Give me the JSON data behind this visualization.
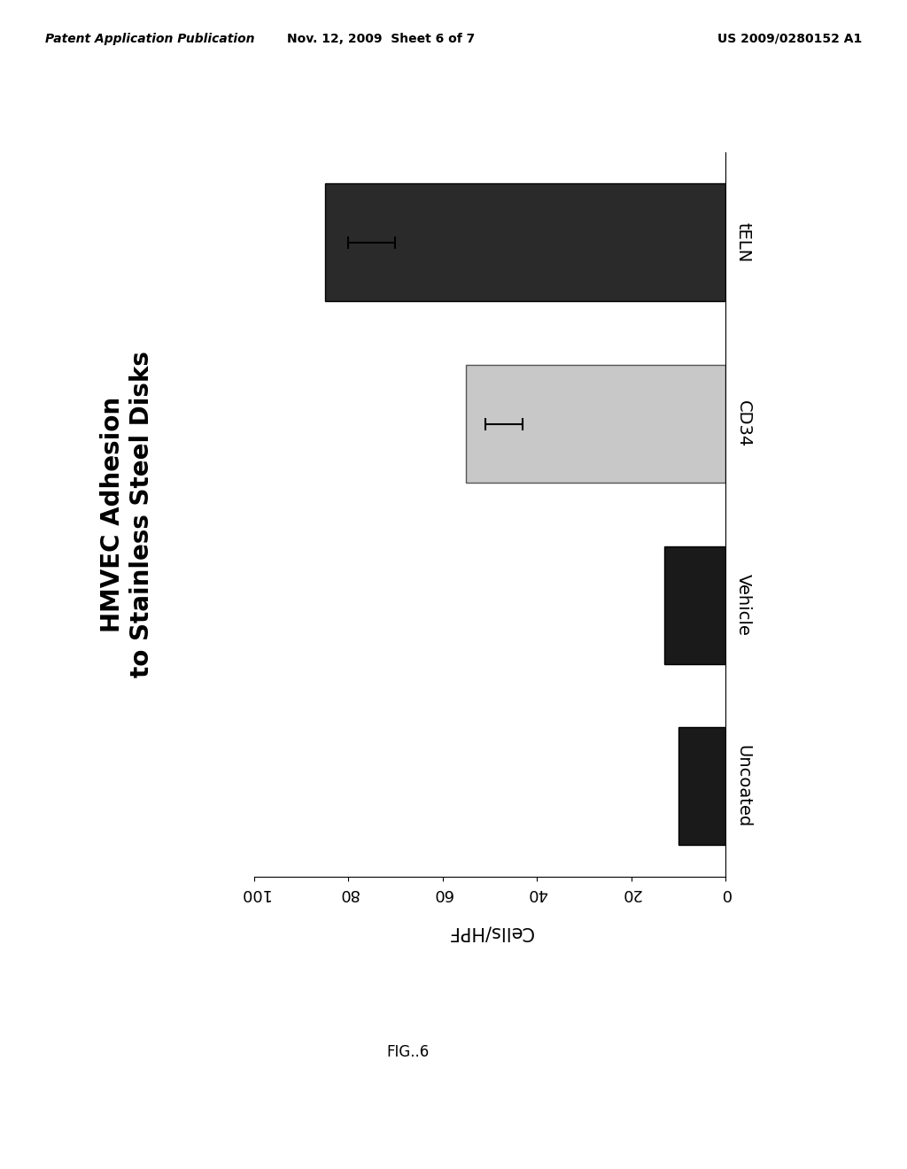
{
  "categories": [
    "Uncoated",
    "Vehicle",
    "CD34",
    "tELN"
  ],
  "values": [
    10,
    13,
    55,
    85
  ],
  "errors": [
    0,
    0,
    8,
    10
  ],
  "has_error": [
    false,
    false,
    true,
    true
  ],
  "bar_colors": [
    "#1a1a1a",
    "#1a1a1a",
    "#c8c8c8",
    "#2a2a2a"
  ],
  "bar_edge_colors": [
    "#000000",
    "#000000",
    "#555555",
    "#000000"
  ],
  "xlabel": "Cells/HPF",
  "xlim": [
    0,
    100
  ],
  "xticks": [
    0,
    20,
    40,
    60,
    80,
    100
  ],
  "title_line1": "HMVEC Adhesion",
  "title_line2": "to Stainless Steel Disks",
  "title_fontsize": 20,
  "tick_fontsize": 13,
  "label_fontsize": 15,
  "fig_caption": "FIG..6",
  "header_left": "Patent Application Publication",
  "header_center": "Nov. 12, 2009  Sheet 6 of 7",
  "header_right": "US 2009/0280152 A1",
  "background_color": "#ffffff",
  "category_label_fontsize": 14,
  "bar_height": 0.65
}
